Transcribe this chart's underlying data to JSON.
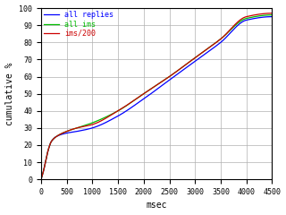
{
  "title": "",
  "xlabel": "msec",
  "ylabel": "cumulative %",
  "xlim": [
    0,
    4500
  ],
  "ylim": [
    0,
    100
  ],
  "xticks": [
    0,
    500,
    1000,
    1500,
    2000,
    2500,
    3000,
    3500,
    4000,
    4500
  ],
  "yticks": [
    0,
    10,
    20,
    30,
    40,
    50,
    60,
    70,
    80,
    90,
    100
  ],
  "legend": [
    {
      "label": "all replies",
      "color": "#0000ff"
    },
    {
      "label": "all ims",
      "color": "#00bb00"
    },
    {
      "label": "ims/200",
      "color": "#cc0000"
    }
  ],
  "bg_color": "#ffffff",
  "grid_color": "#b0b0b0",
  "keypoints_blue": [
    [
      0,
      0
    ],
    [
      50,
      5
    ],
    [
      100,
      12
    ],
    [
      150,
      18
    ],
    [
      200,
      22
    ],
    [
      300,
      25
    ],
    [
      500,
      27
    ],
    [
      700,
      28
    ],
    [
      1000,
      30
    ],
    [
      1500,
      37
    ],
    [
      2000,
      47
    ],
    [
      2500,
      58
    ],
    [
      3000,
      69
    ],
    [
      3500,
      80
    ],
    [
      4000,
      93
    ],
    [
      4500,
      95
    ]
  ],
  "keypoints_green": [
    [
      0,
      0
    ],
    [
      50,
      5
    ],
    [
      100,
      12
    ],
    [
      150,
      18
    ],
    [
      200,
      22
    ],
    [
      300,
      25
    ],
    [
      500,
      28
    ],
    [
      700,
      30
    ],
    [
      1000,
      33
    ],
    [
      1500,
      40
    ],
    [
      2000,
      50
    ],
    [
      2500,
      60
    ],
    [
      3000,
      71
    ],
    [
      3500,
      82
    ],
    [
      4000,
      94
    ],
    [
      4500,
      96
    ]
  ],
  "keypoints_red": [
    [
      0,
      0
    ],
    [
      50,
      5
    ],
    [
      100,
      12
    ],
    [
      150,
      18
    ],
    [
      200,
      22
    ],
    [
      300,
      25
    ],
    [
      500,
      28
    ],
    [
      700,
      30
    ],
    [
      1000,
      32
    ],
    [
      1500,
      40
    ],
    [
      2000,
      50
    ],
    [
      2500,
      60
    ],
    [
      3000,
      71
    ],
    [
      3500,
      82
    ],
    [
      4000,
      95
    ],
    [
      4500,
      97
    ]
  ]
}
